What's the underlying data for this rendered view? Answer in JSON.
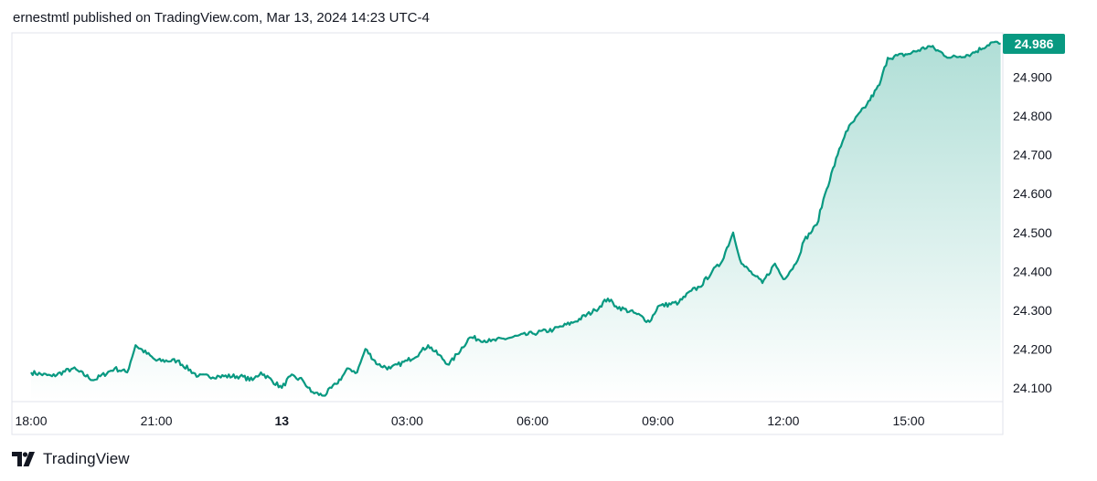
{
  "header": {
    "text": "ernestmtl published on TradingView.com, Mar 13, 2024 14:23 UTC-4"
  },
  "brand": {
    "name": "TradingView",
    "icon": "tradingview-logo-icon"
  },
  "colors": {
    "line": "#089981",
    "fill_top": "#089981",
    "badge": "#089981",
    "border": "#e0e3eb",
    "text": "#131722"
  },
  "chart_data": {
    "type": "area",
    "last_value_label": "24.986",
    "y_ticks": [
      "24.900",
      "24.800",
      "24.700",
      "24.600",
      "24.500",
      "24.400",
      "24.300",
      "24.200",
      "24.100"
    ],
    "ylim": [
      24.07,
      25.02
    ],
    "x_ticks": [
      "18:00",
      "21:00",
      "13",
      "03:00",
      "06:00",
      "09:00",
      "12:00",
      "15:00"
    ],
    "x_tick_hours": [
      0,
      3,
      6,
      9,
      12,
      15,
      18,
      21
    ],
    "xlim_hours": [
      0,
      23.3
    ],
    "x_unit": "hours since Mar 12 18:00",
    "series": [
      {
        "x": [
          0,
          0.5,
          1.0,
          1.5,
          2.0,
          2.3,
          2.5,
          3.0,
          3.5,
          4.0,
          4.5,
          5.0,
          5.3,
          5.5,
          6.0,
          6.2,
          6.5,
          6.7,
          7.0,
          7.3,
          7.6,
          7.8,
          8.0,
          8.3,
          8.6,
          9.0,
          9.3,
          9.5,
          10.0,
          10.5,
          11.0,
          11.5,
          12.0,
          12.5,
          13.0,
          13.5,
          13.8,
          14.0,
          14.5,
          14.8,
          15.0,
          15.5,
          15.8,
          16.0,
          16.3,
          16.5,
          16.8,
          17.0,
          17.3,
          17.5,
          17.8,
          18.0,
          18.3,
          18.5,
          18.8,
          19.0,
          19.3,
          19.5,
          20.0,
          20.3,
          20.5,
          21.0,
          21.5,
          22.0,
          22.5,
          23.0,
          23.2
        ],
        "y": [
          24.14,
          24.13,
          24.15,
          24.12,
          24.15,
          24.14,
          24.21,
          24.17,
          24.17,
          24.13,
          24.13,
          24.13,
          24.12,
          24.14,
          24.1,
          24.13,
          24.12,
          24.09,
          24.08,
          24.11,
          24.15,
          24.14,
          24.2,
          24.16,
          24.15,
          24.17,
          24.19,
          24.21,
          24.16,
          24.23,
          24.22,
          24.23,
          24.24,
          24.25,
          24.27,
          24.3,
          24.33,
          24.31,
          24.29,
          24.27,
          24.31,
          24.32,
          24.35,
          24.36,
          24.4,
          24.42,
          24.5,
          24.42,
          24.39,
          24.37,
          24.42,
          24.38,
          24.42,
          24.48,
          24.52,
          24.6,
          24.7,
          24.76,
          24.83,
          24.88,
          24.95,
          24.96,
          24.98,
          24.95,
          24.96,
          24.99,
          24.986
        ]
      }
    ]
  }
}
